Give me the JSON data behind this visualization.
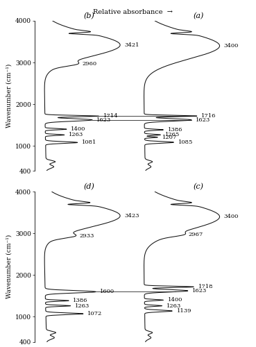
{
  "title_arrow": "Relative absorbance",
  "ylim": [
    400,
    4000
  ],
  "yticks": [
    400,
    1000,
    2000,
    3000,
    4000
  ],
  "line_color": "#111111",
  "bg_color": "#ffffff",
  "fontsize_label": 6.5,
  "fontsize_tick": 6.5,
  "fontsize_panel": 8,
  "fontsize_arrow_label": 7,
  "fontsize_annot": 6,
  "panels_row0": {
    "left_label": "(b)",
    "right_label": "(a)",
    "left_peaks_labeled": [
      3421,
      2960,
      1714,
      1623,
      1400,
      1263,
      1081
    ],
    "right_peaks_labeled": [
      3400,
      1716,
      1623,
      1386,
      1265,
      1207,
      1085
    ],
    "hlines_wn": [
      1714,
      1623
    ]
  },
  "panels_row1": {
    "left_label": "(d)",
    "right_label": "(c)",
    "left_peaks_labeled": [
      3423,
      2933,
      1600,
      1386,
      1263,
      1072
    ],
    "right_peaks_labeled": [
      3400,
      2967,
      1718,
      1623,
      1400,
      1263,
      1139
    ],
    "hlines_wn": [
      1600
    ]
  }
}
